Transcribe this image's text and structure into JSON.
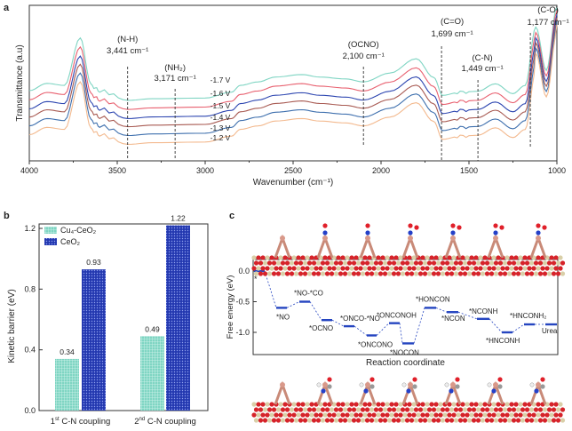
{
  "panel_labels": {
    "a": "a",
    "b": "b",
    "c": "c"
  },
  "chart_data": [
    {
      "type": "line",
      "panel": "a",
      "xlabel": "Wavenumber (cm⁻¹)",
      "ylabel": "Transmittance (a.u)",
      "xlim": [
        4000,
        1000
      ],
      "xticks": [
        4000,
        3500,
        3000,
        2500,
        2000,
        1500,
        1000
      ],
      "grid": false,
      "shape": [
        [
          4000,
          0.43
        ],
        [
          3900,
          0.48
        ],
        [
          3800,
          0.466
        ],
        [
          3710,
          0.79
        ],
        [
          3650,
          0.466
        ],
        [
          3600,
          0.43
        ],
        [
          3440,
          0.364
        ],
        [
          3300,
          0.375
        ],
        [
          3000,
          0.38
        ],
        [
          2850,
          0.42
        ],
        [
          2800,
          0.466
        ],
        [
          2700,
          0.49
        ],
        [
          2600,
          0.523
        ],
        [
          2450,
          0.54
        ],
        [
          2350,
          0.523
        ],
        [
          2200,
          0.51
        ],
        [
          2100,
          0.49
        ],
        [
          1950,
          0.55
        ],
        [
          1800,
          0.648
        ],
        [
          1700,
          0.52
        ],
        [
          1650,
          0.398
        ],
        [
          1550,
          0.42
        ],
        [
          1450,
          0.426
        ],
        [
          1350,
          0.477
        ],
        [
          1250,
          0.41
        ],
        [
          1180,
          0.466
        ],
        [
          1120,
          0.864
        ],
        [
          1060,
          0.568
        ],
        [
          1000,
          1.0
        ]
      ],
      "series": [
        {
          "name": "-1.7 V",
          "offset": 0.0,
          "color": "#7fd5c3"
        },
        {
          "name": "-1.6 V",
          "offset": -0.062,
          "color": "#e8606f"
        },
        {
          "name": "-1.5 V",
          "offset": -0.124,
          "color": "#2c45b0"
        },
        {
          "name": "-1.4 V",
          "offset": -0.18,
          "color": "#a85a52"
        },
        {
          "name": "-1.3 V",
          "offset": -0.24,
          "color": "#3f70ae"
        },
        {
          "name": "-1.2 V",
          "offset": -0.3,
          "color": "#f3b98e"
        }
      ],
      "annotations": [
        {
          "group": "(N-H)",
          "value": "3,441 cm⁻¹",
          "wn": 3441
        },
        {
          "group": "(NH₂)",
          "value": "3,171 cm⁻¹",
          "wn": 3171
        },
        {
          "group": "(OCNO)",
          "value": "2,100 cm⁻¹",
          "wn": 2100
        },
        {
          "group": "(C=O)",
          "value": "1,699 cm⁻¹",
          "wn": 1656
        },
        {
          "group": "(C-N)",
          "value": "1,449 cm⁻¹",
          "wn": 1449
        },
        {
          "group": "(C-O)",
          "value": "1,177 cm⁻¹",
          "wn": 1151
        }
      ]
    },
    {
      "type": "bar",
      "panel": "b",
      "ylabel": "Kinetic barrier (eV)",
      "ylim": [
        0,
        1.2
      ],
      "yticks": [
        "0.0",
        "0.4",
        "0.8",
        "1.2"
      ],
      "categories": [
        "1st C-N coupling",
        "2nd C-N coupling"
      ],
      "category_parts": [
        [
          "1",
          "st",
          " C-N coupling"
        ],
        [
          "2",
          "nd",
          " C-N coupling"
        ]
      ],
      "series": [
        {
          "name": "Cu₄-CeO₂",
          "values": [
            0.34,
            0.49
          ],
          "labels": [
            "0.34",
            "0.49"
          ],
          "color": "#7fd5c3"
        },
        {
          "name": "CeO₂",
          "values": [
            0.93,
            1.22
          ],
          "labels": [
            "0.93",
            "1.22"
          ],
          "color": "#2338b0"
        }
      ],
      "legend": "top-left"
    },
    {
      "type": "line",
      "panel": "c",
      "xlabel": "Reaction coordinate",
      "ylabel": "Free energy (eV)",
      "ylim": [
        -1.3,
        0.05
      ],
      "yticks": [
        "0.0",
        "-0.5",
        "-1.0"
      ],
      "states": [
        {
          "label": "*",
          "value": 0.0
        },
        {
          "label": "*NO",
          "value": -0.6
        },
        {
          "label": "*NO-*CO",
          "value": -0.5
        },
        {
          "label": "*OCNO",
          "value": -0.8
        },
        {
          "label": "*ONCO-*NO",
          "value": -0.9
        },
        {
          "label": "*ONCONO",
          "value": -1.05
        },
        {
          "label": "*ONCONOH",
          "value": -0.85
        },
        {
          "label": "*NOCON",
          "value": -1.18
        },
        {
          "label": "*HONCON",
          "value": -0.6
        },
        {
          "label": "*NCON",
          "value": -0.67
        },
        {
          "label": "*NCONH",
          "value": -0.78
        },
        {
          "label": "*HNCONH",
          "value": -1.0
        },
        {
          "label": "*HNCONH₂",
          "value": -0.87
        },
        {
          "label": "Urea",
          "value": -0.87
        }
      ],
      "color": "#2545c0"
    }
  ]
}
